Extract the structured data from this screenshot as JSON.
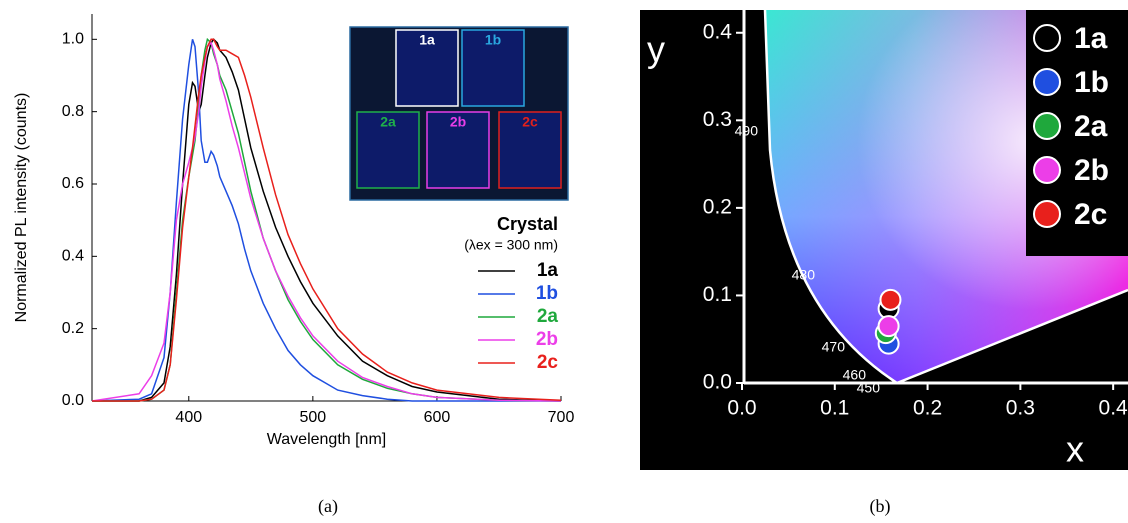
{
  "chart_data": [
    {
      "type": "line",
      "x_label": "Wavelength [nm]",
      "y_label": "Normalized PL intensity (counts)",
      "caption": "(a)",
      "legend_title": "Crystal",
      "legend_note": "(λex = 300 nm)",
      "legend": "right",
      "inset_labels": [
        "1a",
        "1b",
        "2a",
        "2b",
        "2c"
      ],
      "inset_colors": [
        "#ffffff",
        "#2aa7e0",
        "#1fb04a",
        "#e83ee8",
        "#e0201c"
      ],
      "xlim": [
        322,
        700
      ],
      "xticks": [
        400,
        500,
        600,
        700
      ],
      "ylim": [
        0,
        1.07
      ],
      "yticks": [
        {
          "value": 0,
          "label": "0.0"
        },
        0.2,
        0.4,
        0.6,
        0.8,
        {
          "value": 1,
          "label": "1.0"
        }
      ],
      "x": [
        322,
        360,
        370,
        380,
        385,
        390,
        395,
        400,
        403,
        405,
        408,
        410,
        413,
        415,
        418,
        420,
        423,
        425,
        430,
        435,
        440,
        445,
        450,
        460,
        470,
        480,
        490,
        500,
        520,
        540,
        560,
        580,
        600,
        650,
        700
      ],
      "series": [
        {
          "name": "1a",
          "color": "#000000",
          "values": [
            0,
            0,
            0.01,
            0.05,
            0.15,
            0.35,
            0.6,
            0.82,
            0.88,
            0.87,
            0.8,
            0.82,
            0.9,
            0.95,
            0.99,
            1.0,
            0.99,
            0.97,
            0.95,
            0.91,
            0.86,
            0.78,
            0.7,
            0.58,
            0.48,
            0.4,
            0.33,
            0.27,
            0.18,
            0.11,
            0.07,
            0.04,
            0.025,
            0.005,
            0
          ]
        },
        {
          "name": "1b",
          "color": "#1f4fe0",
          "values": [
            0,
            0.005,
            0.02,
            0.12,
            0.3,
            0.55,
            0.78,
            0.93,
            1.0,
            0.98,
            0.85,
            0.72,
            0.66,
            0.66,
            0.69,
            0.68,
            0.65,
            0.62,
            0.58,
            0.54,
            0.49,
            0.42,
            0.36,
            0.27,
            0.2,
            0.14,
            0.1,
            0.07,
            0.03,
            0.015,
            0.005,
            0,
            0,
            0,
            0
          ]
        },
        {
          "name": "2a",
          "color": "#1fa83c",
          "values": [
            0,
            0,
            0.005,
            0.03,
            0.1,
            0.3,
            0.5,
            0.62,
            0.68,
            0.72,
            0.82,
            0.9,
            0.97,
            1.0,
            0.99,
            0.96,
            0.93,
            0.9,
            0.86,
            0.8,
            0.74,
            0.66,
            0.58,
            0.45,
            0.36,
            0.28,
            0.22,
            0.17,
            0.1,
            0.06,
            0.035,
            0.02,
            0.01,
            0.002,
            0
          ]
        },
        {
          "name": "2b",
          "color": "#ec3ee8",
          "values": [
            0,
            0.02,
            0.07,
            0.16,
            0.3,
            0.5,
            0.6,
            0.66,
            0.7,
            0.73,
            0.8,
            0.87,
            0.94,
            0.98,
            0.99,
            0.97,
            0.93,
            0.89,
            0.83,
            0.76,
            0.7,
            0.63,
            0.56,
            0.45,
            0.36,
            0.29,
            0.23,
            0.18,
            0.11,
            0.065,
            0.04,
            0.02,
            0.01,
            0.002,
            0
          ]
        },
        {
          "name": "2c",
          "color": "#e8201c",
          "values": [
            0,
            0,
            0.005,
            0.03,
            0.1,
            0.28,
            0.48,
            0.62,
            0.7,
            0.76,
            0.85,
            0.9,
            0.95,
            0.98,
            1.0,
            1.0,
            0.98,
            0.97,
            0.97,
            0.96,
            0.95,
            0.9,
            0.84,
            0.7,
            0.57,
            0.46,
            0.38,
            0.31,
            0.2,
            0.13,
            0.08,
            0.05,
            0.03,
            0.01,
            0.002
          ]
        }
      ]
    },
    {
      "type": "scatter",
      "x_label": "x",
      "y_label": "y",
      "caption": "(b)",
      "legend": "upper right",
      "wavelength_labels": [
        490,
        480,
        470,
        460,
        450
      ],
      "xlim": [
        0,
        0.416
      ],
      "xticks": [
        {
          "value": 0,
          "label": "0.0"
        },
        0.1,
        0.2,
        0.3,
        0.4
      ],
      "ylim": [
        0,
        0.426
      ],
      "yticks": [
        {
          "value": 0,
          "label": "0.0"
        },
        0.1,
        0.2,
        0.3,
        0.4
      ],
      "series": [
        {
          "name": "1a",
          "color": "#000000",
          "x": [
            0.158
          ],
          "y": [
            0.085
          ]
        },
        {
          "name": "1b",
          "color": "#1f4fe0",
          "x": [
            0.158
          ],
          "y": [
            0.045
          ]
        },
        {
          "name": "2a",
          "color": "#1fa83c",
          "x": [
            0.155
          ],
          "y": [
            0.057
          ]
        },
        {
          "name": "2b",
          "color": "#ec3ee8",
          "x": [
            0.158
          ],
          "y": [
            0.065
          ]
        },
        {
          "name": "2c",
          "color": "#e8201c",
          "x": [
            0.16
          ],
          "y": [
            0.095
          ]
        }
      ]
    }
  ]
}
